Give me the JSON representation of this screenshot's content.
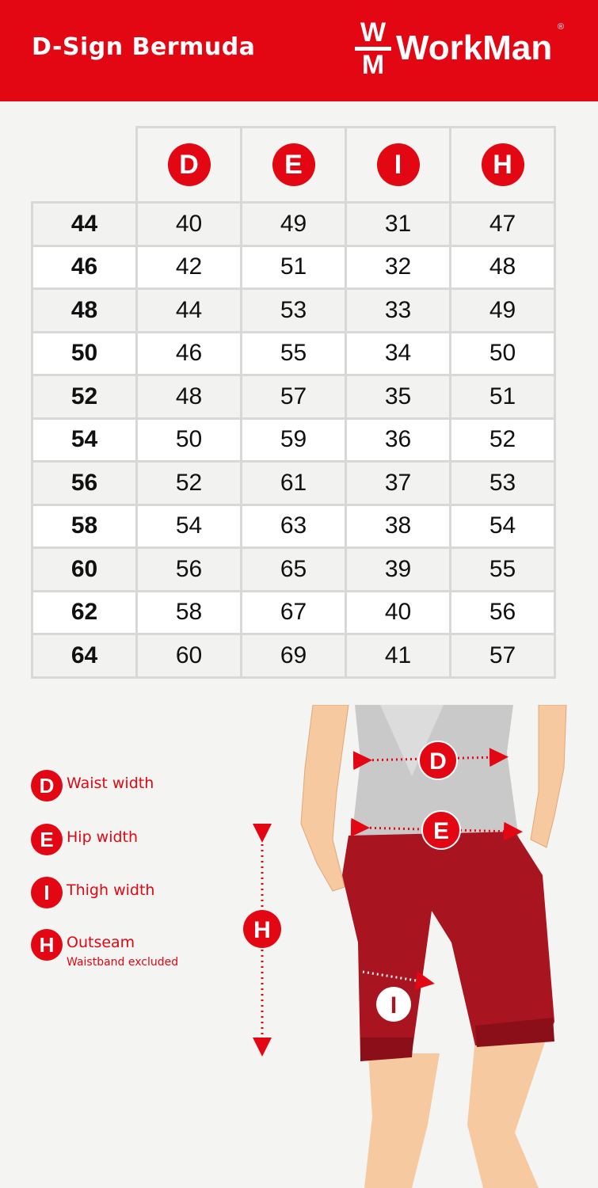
{
  "header": {
    "title": "D-Sign Bermuda",
    "brand": "WorkMan",
    "brand_mark_top": "W",
    "brand_mark_bottom": "M",
    "registered": "®",
    "color": "#e30613"
  },
  "table": {
    "columns": [
      "D",
      "E",
      "I",
      "H"
    ],
    "rows": [
      {
        "size": "44",
        "values": [
          "40",
          "49",
          "31",
          "47"
        ]
      },
      {
        "size": "46",
        "values": [
          "42",
          "51",
          "32",
          "48"
        ]
      },
      {
        "size": "48",
        "values": [
          "44",
          "53",
          "33",
          "49"
        ]
      },
      {
        "size": "50",
        "values": [
          "46",
          "55",
          "34",
          "50"
        ]
      },
      {
        "size": "52",
        "values": [
          "48",
          "57",
          "35",
          "51"
        ]
      },
      {
        "size": "54",
        "values": [
          "50",
          "59",
          "36",
          "52"
        ]
      },
      {
        "size": "56",
        "values": [
          "52",
          "61",
          "37",
          "53"
        ]
      },
      {
        "size": "58",
        "values": [
          "54",
          "63",
          "38",
          "54"
        ]
      },
      {
        "size": "60",
        "values": [
          "56",
          "65",
          "39",
          "55"
        ]
      },
      {
        "size": "62",
        "values": [
          "58",
          "67",
          "40",
          "56"
        ]
      },
      {
        "size": "64",
        "values": [
          "60",
          "69",
          "41",
          "57"
        ]
      }
    ]
  },
  "legend": [
    {
      "key": "D",
      "label": "Waist width"
    },
    {
      "key": "E",
      "label": "Hip width"
    },
    {
      "key": "I",
      "label": "Thigh width"
    },
    {
      "key": "H",
      "label": "Outseam",
      "note": "Waistband excluded"
    }
  ],
  "figure": {
    "markers": [
      "D",
      "E",
      "H",
      "I"
    ]
  }
}
